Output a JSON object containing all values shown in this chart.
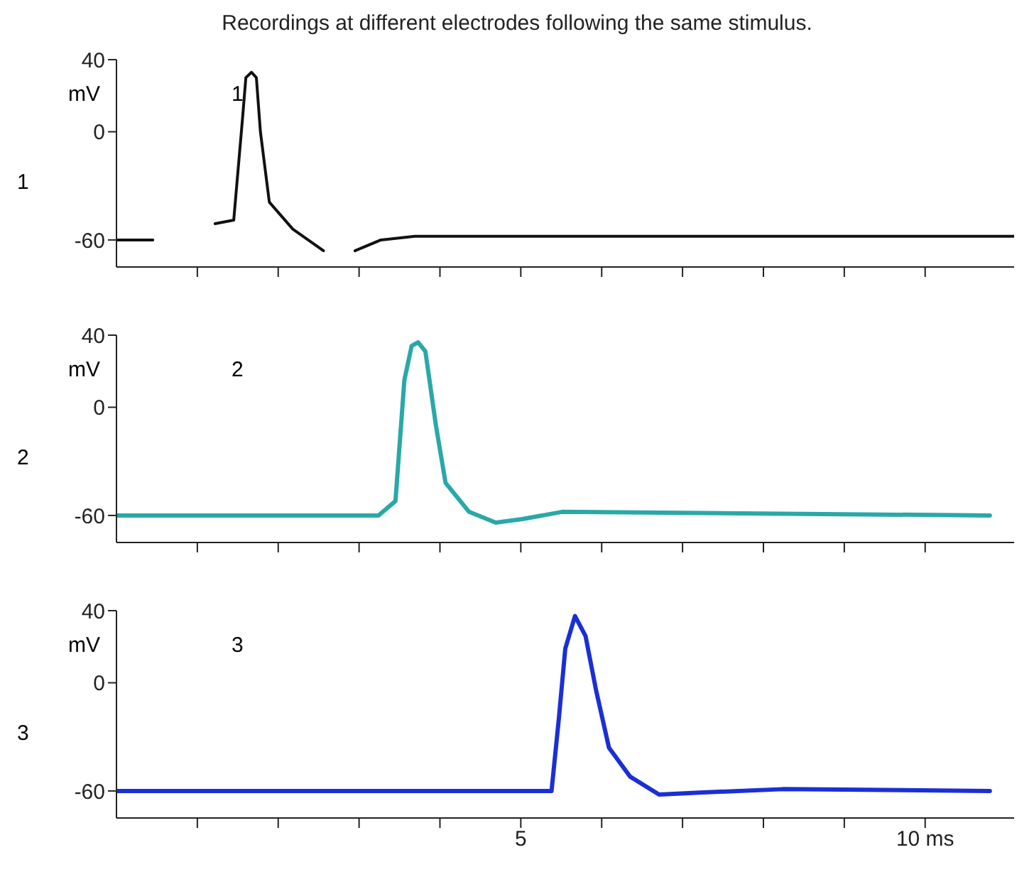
{
  "chart_data": [
    {
      "type": "line",
      "title": "Recordings at different electrodes following the same stimulus.",
      "ylabel": "mV",
      "annotations": [
        "1",
        "1"
      ],
      "x": [
        0,
        0.45,
        0.8,
        1.22,
        1.45,
        1.56,
        1.6,
        1.67,
        1.73,
        1.78,
        1.89,
        2.18,
        2.56,
        2.8,
        2.95,
        3.27,
        3.69,
        5.0,
        11.1
      ],
      "series": [
        {
          "color": "#111111",
          "values": [
            -60,
            -60,
            null,
            -51,
            -49,
            8,
            30,
            33,
            30,
            0,
            -39,
            -54,
            -66,
            null,
            -66,
            -60,
            -58,
            -58,
            -58
          ]
        }
      ],
      "xlim": [
        0,
        11.1
      ],
      "xticks": [
        {
          "value": 1,
          "label": null
        },
        {
          "value": 2,
          "label": null
        },
        {
          "value": 3,
          "label": null
        },
        {
          "value": 4,
          "label": null
        },
        {
          "value": 5,
          "label": null
        },
        {
          "value": 6,
          "label": null
        },
        {
          "value": 7,
          "label": null
        },
        {
          "value": 8,
          "label": null
        },
        {
          "value": 9,
          "label": null
        },
        {
          "value": 10,
          "label": null
        }
      ],
      "ylim": [
        -75,
        40
      ],
      "yticks": [
        -60,
        0,
        40
      ],
      "tick_labels": "y"
    },
    {
      "type": "line",
      "ylabel": "mV",
      "annotations": [
        "2",
        "2"
      ],
      "x": [
        0,
        3.24,
        3.45,
        3.56,
        3.65,
        3.73,
        3.82,
        3.95,
        4.07,
        4.36,
        4.69,
        5.02,
        5.51,
        10.8
      ],
      "series": [
        {
          "color": "#2aa8a8",
          "values": [
            -60,
            -60,
            -52,
            15,
            34,
            36,
            31,
            -10,
            -42,
            -58,
            -64,
            -62,
            -58,
            -60
          ]
        }
      ],
      "xlim": [
        0,
        11.1
      ],
      "xticks": [
        {
          "value": 1,
          "label": null
        },
        {
          "value": 2,
          "label": null
        },
        {
          "value": 3,
          "label": null
        },
        {
          "value": 4,
          "label": null
        },
        {
          "value": 5,
          "label": null
        },
        {
          "value": 6,
          "label": null
        },
        {
          "value": 7,
          "label": null
        },
        {
          "value": 8,
          "label": null
        },
        {
          "value": 9,
          "label": null
        },
        {
          "value": 10,
          "label": null
        }
      ],
      "ylim": [
        -75,
        40
      ],
      "yticks": [
        -60,
        0,
        40
      ],
      "tick_labels": "y"
    },
    {
      "type": "line",
      "ylabel": "mV",
      "annotations": [
        "3",
        "3"
      ],
      "x": [
        0,
        5.38,
        5.47,
        5.55,
        5.67,
        5.8,
        5.93,
        6.09,
        6.35,
        6.71,
        7.16,
        8.24,
        10.8
      ],
      "series": [
        {
          "color": "#1a2fd6",
          "values": [
            -60,
            -60,
            -20,
            19,
            37,
            26,
            -4,
            -36,
            -52,
            -62,
            -61,
            -59,
            -60
          ]
        }
      ],
      "xlim": [
        0,
        11.1
      ],
      "xticks": [
        {
          "value": 1,
          "label": null
        },
        {
          "value": 2,
          "label": null
        },
        {
          "value": 3,
          "label": null
        },
        {
          "value": 4,
          "label": null
        },
        5,
        {
          "value": 6,
          "label": null
        },
        {
          "value": 7,
          "label": null
        },
        {
          "value": 8,
          "label": null
        },
        {
          "value": 9,
          "label": null
        },
        {
          "value": 10,
          "label": "10 ms"
        }
      ],
      "ylim": [
        -75,
        40
      ],
      "yticks": [
        -60,
        0,
        40
      ]
    }
  ]
}
